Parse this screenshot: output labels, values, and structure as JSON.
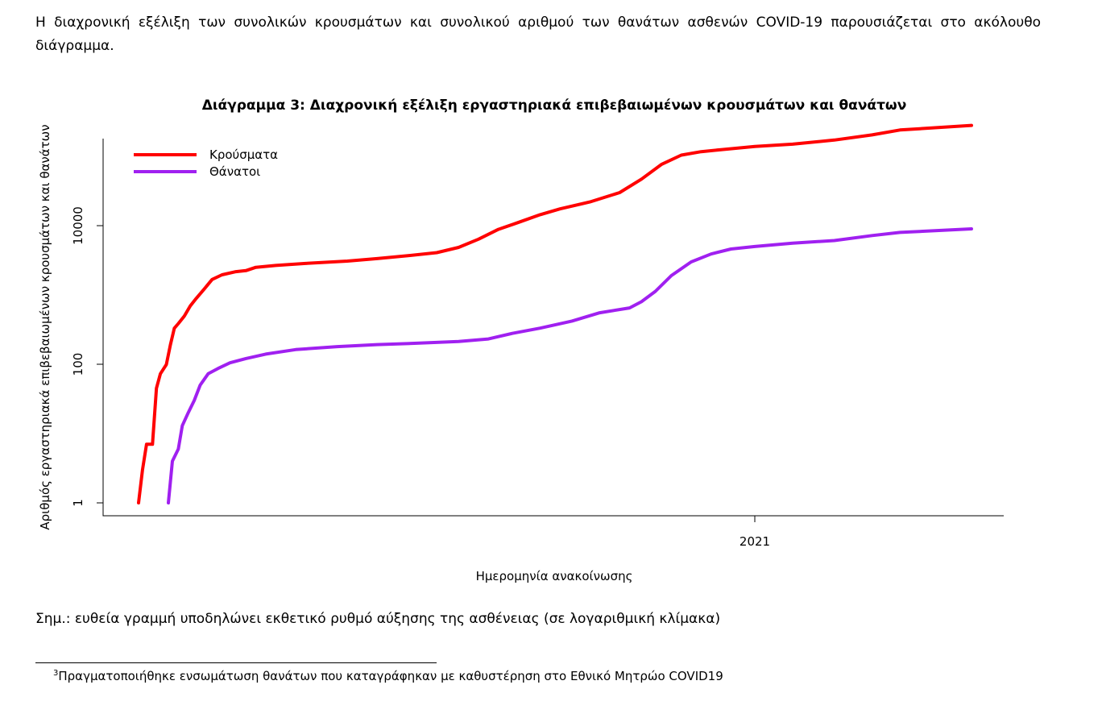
{
  "document": {
    "intro_text": "Η διαχρονική εξέλιξη των συνολικών κρουσμάτων και συνολικού αριθμού των θανάτων ασθενών COVID-19 παρουσιάζεται στο ακόλουθο διάγραμμα.",
    "note": "Σημ.: ευθεία γραμμή υποδηλώνει εκθετικό ρυθμό αύξησης της ασθένειας (σε λογαριθμική κλίμακα)",
    "footnote_number": "3",
    "footnote_text": "Πραγματοποιήθηκε ενσωμάτωση θανάτων που καταγράφηκαν με καθυστέρηση στο Εθνικό Μητρώο COVID19"
  },
  "chart_data": {
    "type": "line",
    "title": "Διάγραμμα 3: Διαχρονική εξέλιξη εργαστηριακά επιβεβαιωμένων κρουσμάτων και θανάτων",
    "xlabel": "Ημερομηνία ανακοίνωσης",
    "ylabel": "Αριθμός εργαστηριακά επιβεβαιωμένων κρουσμάτων και θανάτων",
    "y_scale": "log",
    "ylim": [
      1,
      300000
    ],
    "xlim": [
      "2020-02-26",
      "2021-04-20"
    ],
    "y_ticks": [
      1,
      100,
      10000
    ],
    "y_tick_labels": [
      "1",
      "100",
      "10000"
    ],
    "x_ticks": [
      "2021-01-01"
    ],
    "x_tick_labels": [
      "2021"
    ],
    "grid": false,
    "legend_position": "top-left",
    "series": [
      {
        "name": "Κρούσματα",
        "color": "#ff0000",
        "points": [
          [
            "2020-02-26",
            1
          ],
          [
            "2020-02-28",
            3
          ],
          [
            "2020-03-01",
            7
          ],
          [
            "2020-03-04",
            7
          ],
          [
            "2020-03-06",
            45
          ],
          [
            "2020-03-08",
            73
          ],
          [
            "2020-03-11",
            99
          ],
          [
            "2020-03-13",
            190
          ],
          [
            "2020-03-15",
            331
          ],
          [
            "2020-03-17",
            387
          ],
          [
            "2020-03-20",
            495
          ],
          [
            "2020-03-23",
            695
          ],
          [
            "2020-03-26",
            892
          ],
          [
            "2020-03-30",
            1212
          ],
          [
            "2020-04-03",
            1673
          ],
          [
            "2020-04-08",
            1955
          ],
          [
            "2020-04-15",
            2170
          ],
          [
            "2020-04-20",
            2245
          ],
          [
            "2020-04-25",
            2506
          ],
          [
            "2020-05-05",
            2663
          ],
          [
            "2020-05-20",
            2850
          ],
          [
            "2020-06-10",
            3083
          ],
          [
            "2020-06-25",
            3343
          ],
          [
            "2020-07-10",
            3672
          ],
          [
            "2020-07-25",
            4077
          ],
          [
            "2020-08-05",
            4855
          ],
          [
            "2020-08-15",
            6381
          ],
          [
            "2020-08-25",
            8850
          ],
          [
            "2020-09-05",
            11386
          ],
          [
            "2020-09-15",
            14400
          ],
          [
            "2020-09-25",
            17444
          ],
          [
            "2020-10-10",
            22000
          ],
          [
            "2020-10-25",
            29992
          ],
          [
            "2020-11-05",
            46892
          ],
          [
            "2020-11-15",
            76403
          ],
          [
            "2020-11-25",
            104227
          ],
          [
            "2020-12-05",
            117000
          ],
          [
            "2020-12-15",
            125000
          ],
          [
            "2021-01-01",
            138850
          ],
          [
            "2021-01-20",
            150000
          ],
          [
            "2021-02-10",
            172000
          ],
          [
            "2021-03-01",
            204000
          ],
          [
            "2021-03-15",
            240000
          ],
          [
            "2021-04-20",
            280000
          ]
        ]
      },
      {
        "name": "Θάνατοι",
        "color": "#a020f0",
        "points": [
          [
            "2020-03-12",
            1
          ],
          [
            "2020-03-14",
            4
          ],
          [
            "2020-03-17",
            6
          ],
          [
            "2020-03-19",
            13
          ],
          [
            "2020-03-22",
            20
          ],
          [
            "2020-03-25",
            30
          ],
          [
            "2020-03-28",
            50
          ],
          [
            "2020-04-01",
            73
          ],
          [
            "2020-04-06",
            87
          ],
          [
            "2020-04-12",
            105
          ],
          [
            "2020-04-20",
            121
          ],
          [
            "2020-04-30",
            140
          ],
          [
            "2020-05-15",
            163
          ],
          [
            "2020-06-05",
            180
          ],
          [
            "2020-06-25",
            192
          ],
          [
            "2020-07-15",
            201
          ],
          [
            "2020-08-05",
            213
          ],
          [
            "2020-08-20",
            232
          ],
          [
            "2020-09-01",
            279
          ],
          [
            "2020-09-15",
            332
          ],
          [
            "2020-10-01",
            420
          ],
          [
            "2020-10-15",
            553
          ],
          [
            "2020-10-30",
            650
          ],
          [
            "2020-11-05",
            800
          ],
          [
            "2020-11-12",
            1130
          ],
          [
            "2020-11-20",
            1900
          ],
          [
            "2020-11-30",
            3000
          ],
          [
            "2020-12-10",
            3900
          ],
          [
            "2020-12-20",
            4600
          ],
          [
            "2021-01-01",
            5000
          ],
          [
            "2021-01-20",
            5600
          ],
          [
            "2021-02-10",
            6100
          ],
          [
            "2021-03-01",
            7200
          ],
          [
            "2021-03-15",
            8000
          ],
          [
            "2021-04-20",
            9000
          ]
        ]
      }
    ]
  }
}
